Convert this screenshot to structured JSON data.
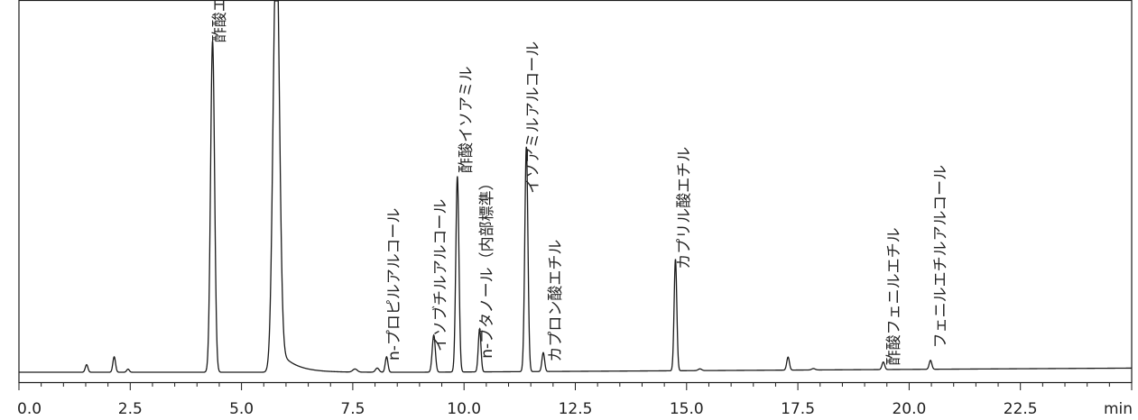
{
  "chart_data": {
    "type": "line",
    "title": "",
    "xlabel": "",
    "ylabel": "",
    "x_unit": "min",
    "xlim": [
      0,
      25
    ],
    "ylim": [
      0,
      1
    ],
    "grid": false,
    "legend": "none",
    "colors": {
      "trace": "#1a1a1a",
      "axis": "#1a1a1a",
      "text": "#222222"
    },
    "x_ticks": [
      "0.0",
      "2.5",
      "5.0",
      "7.5",
      "10.0",
      "12.5",
      "15.0",
      "17.5",
      "20.0",
      "22.5"
    ],
    "peaks": [
      {
        "t": 1.52,
        "h": 0.022,
        "w": 0.03
      },
      {
        "t": 2.14,
        "h": 0.045,
        "w": 0.03
      },
      {
        "t": 2.45,
        "h": 0.009,
        "w": 0.03
      },
      {
        "t": 4.35,
        "h": 0.965,
        "w": 0.045
      },
      {
        "t": 5.78,
        "h": 1.25,
        "w": 0.07
      },
      {
        "t": 7.55,
        "h": 0.009,
        "w": 0.05
      },
      {
        "t": 8.05,
        "h": 0.012,
        "w": 0.04
      },
      {
        "t": 8.26,
        "h": 0.045,
        "w": 0.03
      },
      {
        "t": 9.32,
        "h": 0.108,
        "w": 0.035
      },
      {
        "t": 9.85,
        "h": 0.57,
        "w": 0.035
      },
      {
        "t": 10.35,
        "h": 0.125,
        "w": 0.03
      },
      {
        "t": 11.4,
        "h": 0.655,
        "w": 0.035
      },
      {
        "t": 11.78,
        "h": 0.055,
        "w": 0.03
      },
      {
        "t": 14.75,
        "h": 0.325,
        "w": 0.03
      },
      {
        "t": 15.3,
        "h": 0.005,
        "w": 0.04
      },
      {
        "t": 17.28,
        "h": 0.038,
        "w": 0.03
      },
      {
        "t": 17.85,
        "h": 0.004,
        "w": 0.04
      },
      {
        "t": 19.42,
        "h": 0.022,
        "w": 0.03
      },
      {
        "t": 20.48,
        "h": 0.026,
        "w": 0.03
      }
    ],
    "annotations": [
      {
        "text": "酢酸エチル",
        "t": 4.52,
        "y": 0.96
      },
      {
        "text": "n-プロピルアルコール",
        "t": 8.43,
        "y": 0.034
      },
      {
        "text": "イソブチルアルコール",
        "t": 9.48,
        "y": 0.06
      },
      {
        "text": "酢酸イソアミル",
        "t": 10.06,
        "y": 0.58
      },
      {
        "text": "n-ブタノール（内部標準）",
        "t": 10.52,
        "y": 0.04
      },
      {
        "text": "イソアミルアルコール",
        "t": 11.56,
        "y": 0.52
      },
      {
        "text": "カプロン酸エチル",
        "t": 12.06,
        "y": 0.03
      },
      {
        "text": "カプリル酸エチル",
        "t": 14.95,
        "y": 0.3
      },
      {
        "text": "酢酸フェニルエチル",
        "t": 19.67,
        "y": 0.02
      },
      {
        "text": "フェニルエチルアルコール",
        "t": 20.71,
        "y": 0.07
      }
    ]
  }
}
